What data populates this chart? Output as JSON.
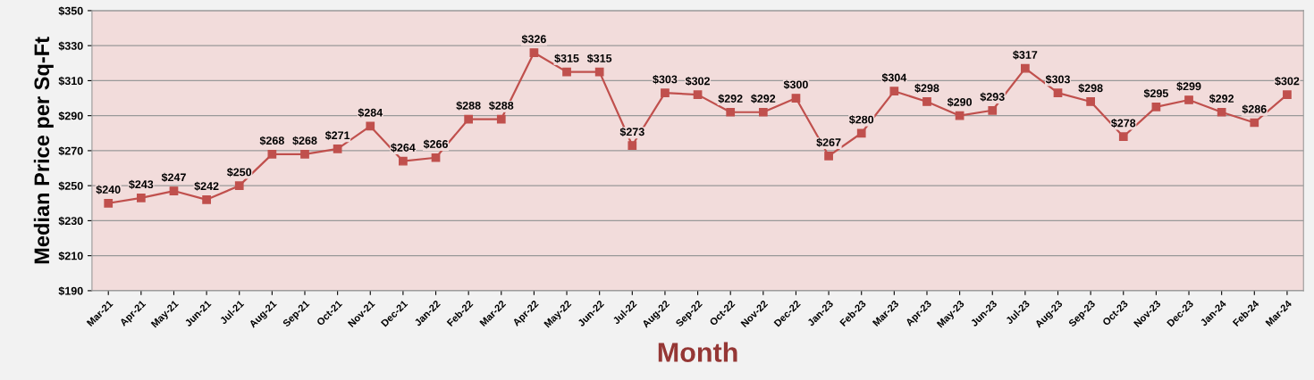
{
  "chart_data": {
    "type": "line",
    "xlabel": "Month",
    "ylabel": "Median Price per Sq-Ft",
    "categories": [
      "Mar-21",
      "Apr-21",
      "May-21",
      "Jun-21",
      "Jul-21",
      "Aug-21",
      "Sep-21",
      "Oct-21",
      "Nov-21",
      "Dec-21",
      "Jan-22",
      "Feb-22",
      "Mar-22",
      "Apr-22",
      "May-22",
      "Jun-22",
      "Jul-22",
      "Aug-22",
      "Sep-22",
      "Oct-22",
      "Nov-22",
      "Dec-22",
      "Jan-23",
      "Feb-23",
      "Mar-23",
      "Apr-23",
      "May-23",
      "Jun-23",
      "Jul-23",
      "Aug-23",
      "Sep-23",
      "Oct-23",
      "Nov-23",
      "Dec-23",
      "Jan-24",
      "Feb-24",
      "Mar-24"
    ],
    "series": [
      {
        "color": "#c0504d",
        "values": [
          240,
          243,
          247,
          242,
          250,
          268,
          268,
          271,
          284,
          264,
          266,
          288,
          288,
          326,
          315,
          315,
          273,
          303,
          302,
          292,
          292,
          300,
          267,
          280,
          304,
          298,
          290,
          293,
          317,
          303,
          298,
          278,
          295,
          299,
          292,
          286,
          302
        ],
        "value_labels": [
          "$240",
          "$243",
          "$247",
          "$242",
          "$250",
          "$268",
          "$268",
          "$271",
          "$284",
          "$264",
          "$266",
          "$288",
          "$288",
          "$326",
          "$315",
          "$315",
          "$273",
          "$303",
          "$302",
          "$292",
          "$292",
          "$300",
          "$267",
          "$280",
          "$304",
          "$298",
          "$290",
          "$293",
          "$317",
          "$303",
          "$298",
          "$278",
          "$295",
          "$299",
          "$292",
          "$286",
          "$302"
        ]
      }
    ],
    "ylim": [
      190,
      350
    ],
    "yticks": [
      {
        "value": 190,
        "label": "$190"
      },
      {
        "value": 210,
        "label": "$210"
      },
      {
        "value": 230,
        "label": "$230"
      },
      {
        "value": 250,
        "label": "$250"
      },
      {
        "value": 270,
        "label": "$270"
      },
      {
        "value": 290,
        "label": "$290"
      },
      {
        "value": 310,
        "label": "$310"
      },
      {
        "value": 330,
        "label": "$330"
      },
      {
        "value": 350,
        "label": "$350"
      }
    ],
    "grid": "y",
    "marker": "square",
    "line_style": "solid",
    "legend": false
  }
}
